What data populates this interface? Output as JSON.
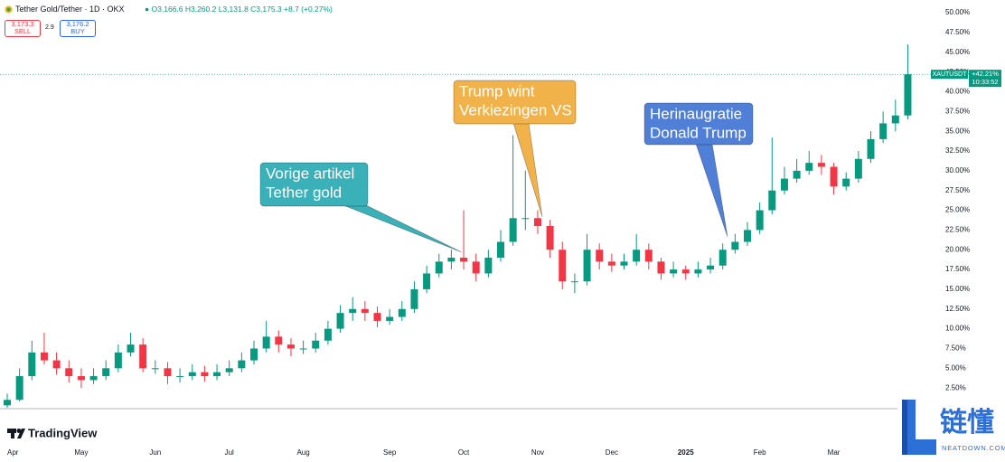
{
  "chart_data": {
    "type": "candlestick",
    "title": "Tether Gold/Tether · 1D · OKX",
    "ohlc_text": "O3,166.6 H3,260.2 L3,131.8 C3,175.3 +8.7 (+0.27%)",
    "quote": {
      "sell_price": "3,173.3",
      "sell_label": "SELL",
      "spread": "2.9",
      "buy_price": "3,176.2",
      "buy_label": "BUY"
    },
    "categories": [
      "Apr",
      null,
      null,
      null,
      null,
      null,
      "May",
      null,
      null,
      null,
      null,
      null,
      "Jun",
      null,
      null,
      null,
      null,
      null,
      "Jul",
      null,
      null,
      null,
      null,
      null,
      "Aug",
      null,
      null,
      null,
      null,
      null,
      null,
      "Sep",
      null,
      null,
      null,
      null,
      null,
      "Oct",
      null,
      null,
      null,
      null,
      null,
      "Nov",
      null,
      null,
      null,
      null,
      null,
      "Dec",
      null,
      null,
      null,
      null,
      null,
      "2025",
      null,
      null,
      null,
      null,
      null,
      "Feb",
      null,
      null,
      null,
      null,
      null,
      "Mar",
      null,
      null,
      null,
      null,
      null,
      null
    ],
    "open": [
      0.3,
      1,
      4,
      7,
      6,
      5,
      4,
      3.5,
      4,
      5,
      7,
      8,
      5,
      5,
      4,
      4,
      4.5,
      4,
      4.5,
      5,
      6,
      7.5,
      9,
      8,
      7.5,
      7.5,
      8.5,
      10,
      12,
      12.5,
      12,
      11,
      11.5,
      12.5,
      15,
      17,
      18.5,
      19,
      18.5,
      17,
      19,
      21,
      24,
      24,
      23,
      20,
      16,
      16,
      20,
      18.5,
      18,
      18.5,
      20,
      18.5,
      17,
      17.5,
      17,
      17.5,
      18,
      20,
      21,
      22.5,
      25,
      27.5,
      29,
      30,
      31,
      30.5,
      28,
      29,
      31.5,
      34,
      36,
      37
    ],
    "high": [
      1.8,
      5,
      8.5,
      9.5,
      7,
      6,
      5,
      5,
      6,
      8,
      9.5,
      8.8,
      6,
      5.8,
      5,
      5.5,
      5.3,
      5.5,
      6,
      7,
      8.5,
      11,
      9.8,
      8.8,
      8.5,
      9.5,
      11,
      13,
      14,
      13.5,
      12.8,
      12.5,
      13.5,
      16,
      18,
      19.5,
      20,
      25,
      19.5,
      20,
      22.5,
      34.5,
      30,
      25,
      23.8,
      21,
      17,
      22,
      20.8,
      19.5,
      19.5,
      22,
      20.8,
      19,
      18.5,
      18,
      18.5,
      19,
      20.8,
      22,
      23.5,
      26,
      34.2,
      30.5,
      31.5,
      32.5,
      32,
      31,
      29.8,
      32.5,
      35,
      37.5,
      39,
      46
    ],
    "low": [
      0,
      0.8,
      3.5,
      5.5,
      4.2,
      3.2,
      2.5,
      3,
      3.5,
      4.5,
      6.5,
      4.5,
      4.3,
      3,
      3.2,
      3.5,
      3.3,
      3.5,
      4,
      4.5,
      5.5,
      7,
      7,
      6.5,
      6.8,
      7,
      8,
      9.5,
      11,
      11,
      10.2,
      10.5,
      11,
      12,
      14.5,
      16.5,
      17.5,
      17.5,
      16,
      16.5,
      18.5,
      20.5,
      22.5,
      22,
      19,
      15,
      14.5,
      15.5,
      17.5,
      17.2,
      17.5,
      18,
      17.5,
      16.2,
      16.5,
      16.2,
      16.5,
      17,
      17.5,
      19.5,
      20.5,
      22,
      24.5,
      27,
      28.5,
      29.5,
      29.5,
      27,
      27.5,
      28.5,
      31,
      33.5,
      35,
      36.5
    ],
    "close": [
      1,
      4,
      7,
      6,
      5,
      4,
      3.5,
      4,
      5,
      7,
      8,
      5,
      5,
      4,
      4,
      4.5,
      4,
      4.5,
      5,
      6,
      7.5,
      9,
      8,
      7.5,
      7.5,
      8.5,
      10,
      12,
      12.5,
      12,
      11,
      11.5,
      12.5,
      15,
      17,
      18.5,
      19,
      18.5,
      17,
      19,
      21,
      24,
      24,
      23,
      20,
      16,
      16,
      20,
      18.5,
      18,
      18.5,
      20,
      18.5,
      17,
      17.5,
      17,
      17.5,
      18,
      20,
      21,
      22.5,
      25,
      27.5,
      29,
      30,
      31,
      30.5,
      28,
      29,
      31.5,
      34,
      36,
      37,
      42.21
    ],
    "up_color": "#089981",
    "down_color": "#f23645",
    "ylim": [
      0,
      51.5
    ],
    "yticks": [
      {
        "value": 2.5,
        "label": "2.50%"
      },
      {
        "value": 5,
        "label": "5.00%"
      },
      {
        "value": 7.5,
        "label": "7.50%"
      },
      {
        "value": 10,
        "label": "10.00%"
      },
      {
        "value": 12.5,
        "label": "12.50%"
      },
      {
        "value": 15,
        "label": "15.00%"
      },
      {
        "value": 17.5,
        "label": "17.50%"
      },
      {
        "value": 20,
        "label": "20.00%"
      },
      {
        "value": 22.5,
        "label": "22.50%"
      },
      {
        "value": 25,
        "label": "25.00%"
      },
      {
        "value": 27.5,
        "label": "27.50%"
      },
      {
        "value": 30,
        "label": "30.00%"
      },
      {
        "value": 32.5,
        "label": "32.50%"
      },
      {
        "value": 35,
        "label": "35.00%"
      },
      {
        "value": 37.5,
        "label": "37.50%"
      },
      {
        "value": 40,
        "label": "40.00%"
      },
      {
        "value": 42.5,
        "label": "42.50%"
      },
      {
        "value": 45,
        "label": "45.00%"
      },
      {
        "value": 47.5,
        "label": "47.50%"
      },
      {
        "value": 50,
        "label": "50.00%"
      }
    ],
    "grid": false,
    "last_value": {
      "value": 42.21,
      "label": "+42.21%"
    },
    "last_symbol": "XAUTUSDT",
    "countdown": "10:33:52",
    "annotations": [
      {
        "lines": [
          "Vorige artikel",
          "Tether gold"
        ],
        "color": "#3ab0b8"
      },
      {
        "lines": [
          "Trump wint",
          "Verkiezingen VS"
        ],
        "color": "#f2b24a"
      },
      {
        "lines": [
          "Herinaugratie",
          "Donald Trump"
        ],
        "color": "#4f7fd6"
      }
    ]
  },
  "branding": {
    "logo": "TradingView",
    "watermark": "链懂",
    "watermark_site": "NEATDOWN.COM"
  }
}
